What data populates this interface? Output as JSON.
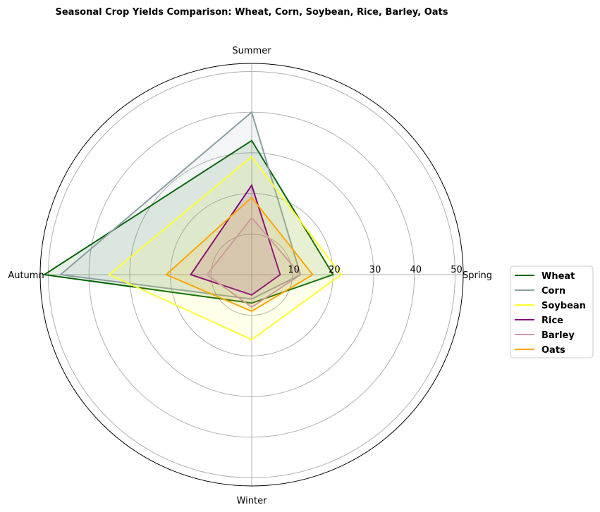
{
  "chart_data": {
    "type": "radar",
    "title": "Seasonal Crop Yields Comparison: Wheat, Corn, Soybean, Rice, Barley, Oats",
    "categories": [
      "Spring",
      "Summer",
      "Autumn",
      "Winter"
    ],
    "radial_ticks": [
      10,
      20,
      30,
      40,
      50
    ],
    "rlim": [
      0,
      52
    ],
    "grid": true,
    "legend_position": "right",
    "series": [
      {
        "name": "Wheat",
        "color": "#006400",
        "values": [
          20,
          33,
          51,
          7
        ]
      },
      {
        "name": "Corn",
        "color": "#8a9fa2",
        "values": [
          12,
          40,
          47,
          6
        ]
      },
      {
        "name": "Soybean",
        "color": "#ffff33",
        "values": [
          22,
          29,
          35,
          16
        ]
      },
      {
        "name": "Rice",
        "color": "#800080",
        "values": [
          7,
          22,
          15,
          5
        ]
      },
      {
        "name": "Barley",
        "color": "#c89aae",
        "values": [
          12,
          14,
          11,
          8
        ]
      },
      {
        "name": "Oats",
        "color": "#ffa500",
        "values": [
          15,
          19,
          21,
          9
        ]
      }
    ]
  }
}
